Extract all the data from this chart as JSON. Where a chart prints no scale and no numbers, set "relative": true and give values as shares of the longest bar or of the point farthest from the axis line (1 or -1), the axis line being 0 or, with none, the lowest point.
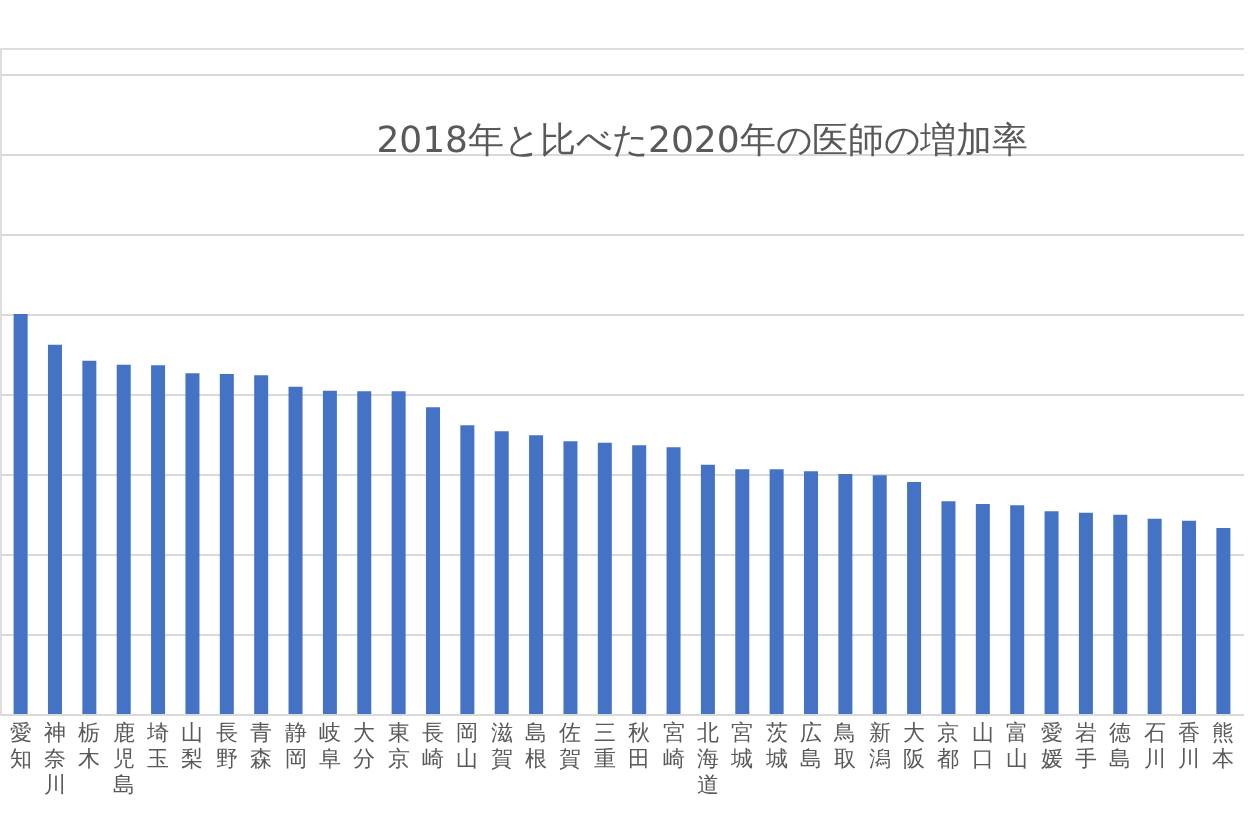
{
  "chart_data": {
    "type": "bar",
    "title": "2018年と比べた2020年の医師の増加率",
    "relative": true,
    "grid": "y",
    "color": "#4472c4",
    "categories": [
      "愛知",
      "神奈川",
      "栃木",
      "鹿児島",
      "埼玉",
      "山梨",
      "長野",
      "青森",
      "静岡",
      "岐阜",
      "大分",
      "東京",
      "長崎",
      "岡山",
      "滋賀",
      "島根",
      "佐賀",
      "三重",
      "秋田",
      "宮崎",
      "北海道",
      "宮城",
      "茨城",
      "広島",
      "鳥取",
      "新潟",
      "大阪",
      "京都",
      "山口",
      "富山",
      "愛媛",
      "岩手",
      "徳島",
      "石川",
      "香川",
      "熊本"
    ],
    "values": [
      1,
      0.923,
      0.883,
      0.873,
      0.872,
      0.852,
      0.85,
      0.847,
      0.818,
      0.808,
      0.807,
      0.807,
      0.767,
      0.722,
      0.707,
      0.697,
      0.682,
      0.678,
      0.672,
      0.667,
      0.623,
      0.612,
      0.612,
      0.607,
      0.6,
      0.597,
      0.58,
      0.532,
      0.525,
      0.522,
      0.507,
      0.503,
      0.498,
      0.488,
      0.483,
      0.465
    ]
  }
}
